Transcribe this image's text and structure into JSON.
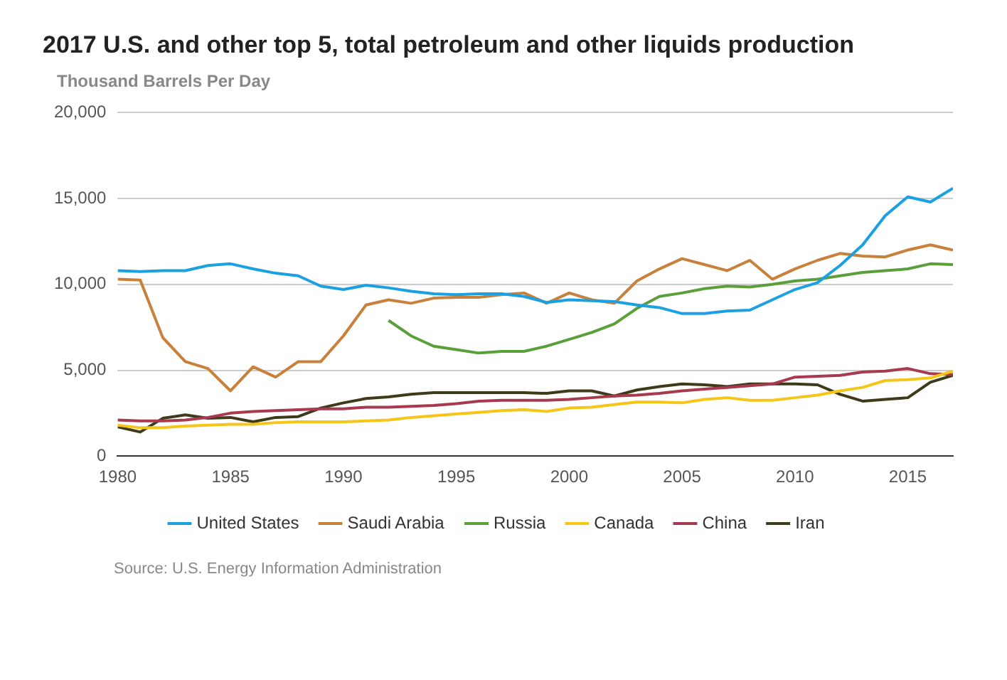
{
  "chart_data": {
    "type": "line",
    "title": "2017 U.S. and other top 5, total petroleum and other liquids production",
    "ylabel": "Thousand Barrels Per Day",
    "x": [
      1980,
      1981,
      1982,
      1983,
      1984,
      1985,
      1986,
      1987,
      1988,
      1989,
      1990,
      1991,
      1992,
      1993,
      1994,
      1995,
      1996,
      1997,
      1998,
      1999,
      2000,
      2001,
      2002,
      2003,
      2004,
      2005,
      2006,
      2007,
      2008,
      2009,
      2010,
      2011,
      2012,
      2013,
      2014,
      2015,
      2016,
      2017
    ],
    "series": [
      {
        "name": "United States",
        "color": "#1ba1e2",
        "values": [
          10800,
          10750,
          10800,
          10800,
          11100,
          11200,
          10900,
          10650,
          10500,
          9900,
          9700,
          9950,
          9800,
          9600,
          9450,
          9400,
          9450,
          9450,
          9300,
          8950,
          9100,
          9050,
          9000,
          8800,
          8650,
          8300,
          8300,
          8450,
          8500,
          9100,
          9700,
          10100,
          11100,
          12300,
          14000,
          15100,
          14800,
          15600
        ]
      },
      {
        "name": "Saudi Arabia",
        "color": "#c8803a",
        "values": [
          10300,
          10250,
          6900,
          5500,
          5100,
          3800,
          5200,
          4600,
          5500,
          5500,
          7000,
          8800,
          9100,
          8900,
          9200,
          9250,
          9250,
          9400,
          9500,
          8900,
          9500,
          9100,
          8900,
          10200,
          10900,
          11500,
          11150,
          10800,
          11400,
          10300,
          10900,
          11400,
          11800,
          11650,
          11600,
          12000,
          12300,
          12000
        ]
      },
      {
        "name": "Russia",
        "color": "#5b9f3a",
        "values": [
          null,
          null,
          null,
          null,
          null,
          null,
          null,
          null,
          null,
          null,
          null,
          null,
          7900,
          7000,
          6400,
          6200,
          6000,
          6100,
          6100,
          6400,
          6800,
          7200,
          7700,
          8600,
          9300,
          9500,
          9750,
          9900,
          9850,
          10000,
          10200,
          10300,
          10500,
          10700,
          10800,
          10900,
          11200,
          11150
        ]
      },
      {
        "name": "Canada",
        "color": "#f5c518",
        "values": [
          1800,
          1650,
          1650,
          1750,
          1800,
          1850,
          1850,
          1950,
          2000,
          2000,
          2000,
          2050,
          2100,
          2250,
          2350,
          2450,
          2550,
          2650,
          2700,
          2600,
          2800,
          2850,
          3000,
          3150,
          3150,
          3100,
          3300,
          3400,
          3250,
          3250,
          3400,
          3550,
          3800,
          4000,
          4400,
          4450,
          4550,
          4950
        ]
      },
      {
        "name": "China",
        "color": "#a83a4f",
        "values": [
          2100,
          2050,
          2050,
          2100,
          2250,
          2500,
          2600,
          2650,
          2700,
          2750,
          2750,
          2850,
          2850,
          2900,
          2950,
          3050,
          3200,
          3250,
          3250,
          3250,
          3300,
          3400,
          3500,
          3550,
          3650,
          3800,
          3900,
          4000,
          4100,
          4200,
          4600,
          4650,
          4700,
          4900,
          4950,
          5100,
          4800,
          4750
        ]
      },
      {
        "name": "Iran",
        "color": "#3f3a1a",
        "values": [
          1700,
          1400,
          2200,
          2400,
          2200,
          2250,
          2000,
          2250,
          2300,
          2800,
          3100,
          3350,
          3450,
          3600,
          3700,
          3700,
          3700,
          3700,
          3700,
          3650,
          3800,
          3800,
          3500,
          3850,
          4050,
          4200,
          4150,
          4050,
          4200,
          4200,
          4200,
          4150,
          3600,
          3200,
          3300,
          3400,
          4300,
          4700
        ]
      }
    ],
    "xlim": [
      1980,
      2017
    ],
    "xticks": [
      1980,
      1985,
      1990,
      1995,
      2000,
      2005,
      2010,
      2015
    ],
    "ylim": [
      0,
      20000
    ],
    "yticks": [
      {
        "value": 0,
        "label": "0"
      },
      {
        "value": 5000,
        "label": "5,000"
      },
      {
        "value": 10000,
        "label": "10,000"
      },
      {
        "value": 15000,
        "label": "15,000"
      },
      {
        "value": 20000,
        "label": "20,000"
      }
    ],
    "grid": "y",
    "legend": "bottom",
    "marker": "none",
    "line_style": "solid",
    "annotations": [
      "Source: U.S. Energy Information Administration"
    ]
  }
}
